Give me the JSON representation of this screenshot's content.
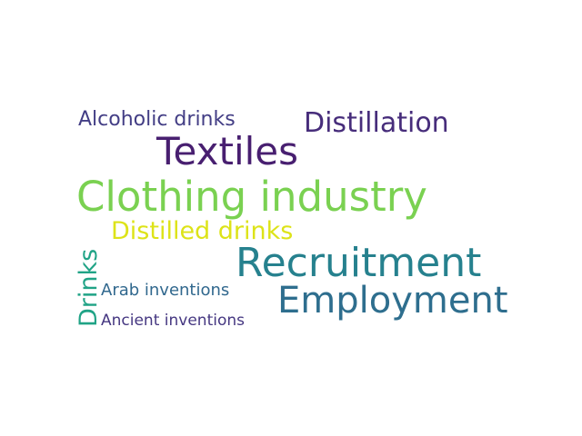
{
  "words": [
    {
      "text": "Alcoholic drinks",
      "color": "#433e85"
    },
    {
      "text": "Distillation",
      "color": "#472d7b"
    },
    {
      "text": "Textiles",
      "color": "#481f70"
    },
    {
      "text": "Clothing industry",
      "color": "#7ad151"
    },
    {
      "text": "Distilled drinks",
      "color": "#dde318"
    },
    {
      "text": "Recruitment",
      "color": "#26818e"
    },
    {
      "text": "Employment",
      "color": "#2e6e8e"
    },
    {
      "text": "Drinks",
      "color": "#20a386"
    },
    {
      "text": "Arab inventions",
      "color": "#31688e"
    },
    {
      "text": "Ancient inventions",
      "color": "#453781"
    }
  ]
}
